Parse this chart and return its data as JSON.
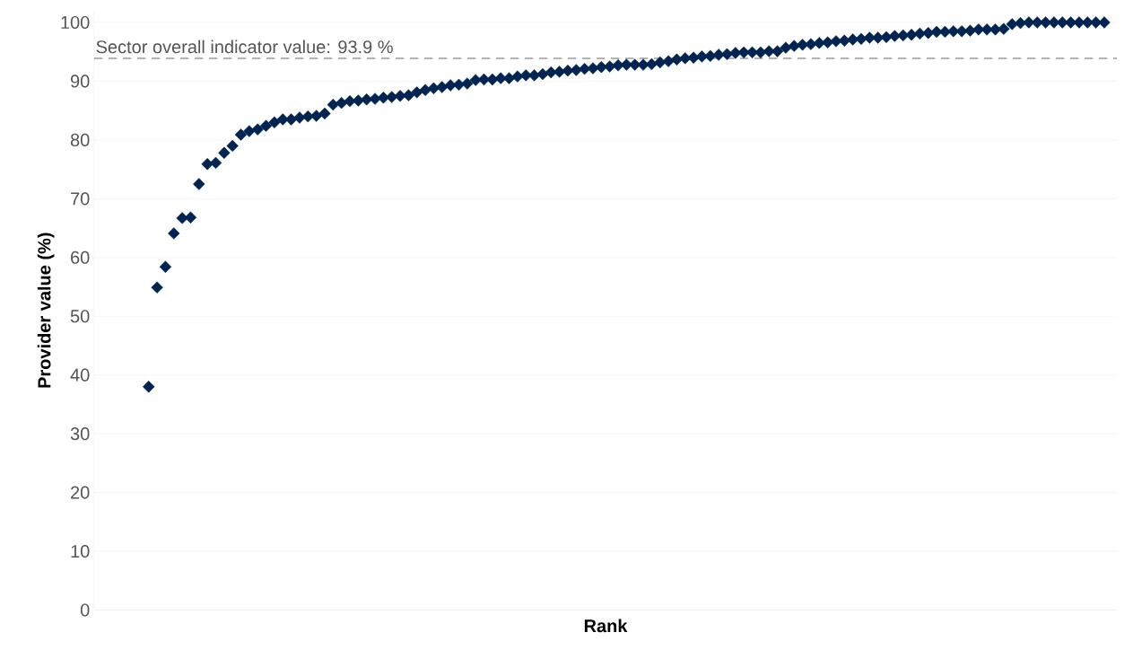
{
  "chart_data": {
    "type": "scatter",
    "xlabel": "Rank",
    "ylabel": "Provider value (%)",
    "categories": [
      null,
      null,
      null,
      null,
      null,
      null,
      null,
      null,
      null,
      null,
      null,
      null,
      null,
      null,
      null,
      null,
      null,
      null,
      null,
      null,
      null,
      null,
      null,
      null,
      null,
      null,
      null,
      null,
      null,
      null,
      null,
      null,
      null,
      null,
      null,
      null,
      null,
      null,
      null,
      null,
      null,
      null,
      null,
      null,
      null,
      null,
      null,
      null,
      null,
      null,
      null,
      null,
      null,
      null,
      null,
      null,
      null,
      null,
      null,
      null,
      null,
      null,
      null,
      null,
      null,
      null,
      null,
      null,
      null,
      null,
      null,
      null,
      null,
      null,
      null,
      null,
      null,
      null,
      null,
      null,
      null,
      null,
      null,
      null,
      null,
      null,
      null,
      null,
      null,
      null,
      null,
      null,
      null,
      null,
      null,
      null,
      null,
      null,
      null,
      null,
      null,
      null,
      null,
      null,
      null,
      null,
      null,
      null,
      null,
      null,
      null,
      null,
      null,
      null,
      null,
      null,
      null,
      null,
      null,
      null,
      null,
      null
    ],
    "series": [
      {
        "color": "#002452",
        "values": [
          null,
          null,
          null,
          null,
          null,
          null,
          38.0,
          54.9,
          58.4,
          64.1,
          66.7,
          66.8,
          72.5,
          75.9,
          76.1,
          77.8,
          79.0,
          80.9,
          81.5,
          81.8,
          82.4,
          83.0,
          83.5,
          83.5,
          83.8,
          84.0,
          84.1,
          84.5,
          86.0,
          86.3,
          86.6,
          86.7,
          86.9,
          87.0,
          87.2,
          87.3,
          87.5,
          87.6,
          88.1,
          88.5,
          88.8,
          89.0,
          89.3,
          89.4,
          89.6,
          90.2,
          90.3,
          90.3,
          90.5,
          90.5,
          90.8,
          91.0,
          91.0,
          91.2,
          91.5,
          91.6,
          91.8,
          91.9,
          92.1,
          92.2,
          92.4,
          92.5,
          92.7,
          92.8,
          92.8,
          92.8,
          92.9,
          93.2,
          93.4,
          93.7,
          93.9,
          94.0,
          94.2,
          94.3,
          94.5,
          94.6,
          94.8,
          94.9,
          94.9,
          94.9,
          95.1,
          95.1,
          95.7,
          96.0,
          96.2,
          96.3,
          96.5,
          96.6,
          96.8,
          96.9,
          97.1,
          97.2,
          97.4,
          97.4,
          97.5,
          97.7,
          97.8,
          97.9,
          98.1,
          98.2,
          98.4,
          98.4,
          98.5,
          98.5,
          98.6,
          98.8,
          98.8,
          98.8,
          98.9,
          99.7,
          99.9,
          100,
          100,
          100,
          100,
          100,
          100,
          100,
          100,
          100,
          100,
          null
        ]
      }
    ],
    "ylim": [
      0,
      102
    ],
    "yticks": [
      0,
      10,
      20,
      30,
      40,
      50,
      60,
      70,
      80,
      90,
      100
    ],
    "grid": "y",
    "marker": "diamond",
    "ref_lines": [
      {
        "axis": "y",
        "value": 93.9,
        "label": "Sector overall indicator value: 93.9 %",
        "color": "#b4b4b4",
        "line_style": "dashed"
      }
    ]
  }
}
